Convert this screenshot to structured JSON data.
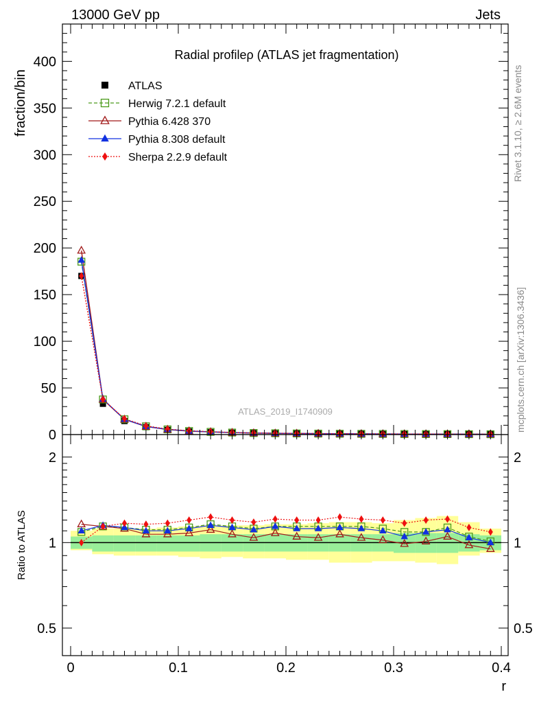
{
  "header": {
    "left": "13000 GeV pp",
    "right": "Jets"
  },
  "side_labels": {
    "rivet": "Rivet 3.1.10, ≥ 2.6M events",
    "mcplots": "mcplots.cern.ch [arXiv:1306.3436]"
  },
  "analysis_id": "ATLAS_2019_I1740909",
  "chart_data": {
    "type": "line",
    "title": "Radial profileρ (ATLAS jet fragmentation)",
    "xlabel": "r",
    "ylabel": "fraction/bin",
    "ratio_ylabel": "Ratio to ATLAS",
    "xlim": [
      -0.01,
      0.4
    ],
    "ylim": [
      0,
      440
    ],
    "ratio_ylim": [
      0.4,
      2.4
    ],
    "ratio_scale": "log",
    "x_ticks": [
      "0",
      "0.1",
      "0.2",
      "0.3",
      "0.4"
    ],
    "y_ticks": [
      "0",
      "50",
      "100",
      "150",
      "200",
      "250",
      "300",
      "350",
      "400"
    ],
    "ratio_ticks": [
      "0.5",
      "1",
      "2"
    ],
    "x": [
      0.01,
      0.03,
      0.05,
      0.07,
      0.09,
      0.11,
      0.13,
      0.15,
      0.17,
      0.19,
      0.21,
      0.23,
      0.25,
      0.27,
      0.29,
      0.31,
      0.33,
      0.35,
      0.37,
      0.39
    ],
    "legend_position": "top-left",
    "data": {
      "name": "ATLAS",
      "values": [
        170,
        33,
        14.5,
        8.0,
        5.0,
        3.4,
        2.5,
        1.9,
        1.5,
        1.25,
        1.05,
        0.9,
        0.78,
        0.68,
        0.6,
        0.53,
        0.47,
        0.42,
        0.38,
        0.34
      ],
      "band_green_lo": [
        0.95,
        0.93,
        0.93,
        0.93,
        0.93,
        0.93,
        0.93,
        0.93,
        0.93,
        0.93,
        0.93,
        0.93,
        0.93,
        0.93,
        0.93,
        0.92,
        0.92,
        0.92,
        0.93,
        0.94
      ],
      "band_green_hi": [
        1.05,
        1.06,
        1.06,
        1.06,
        1.06,
        1.06,
        1.07,
        1.07,
        1.07,
        1.07,
        1.07,
        1.07,
        1.07,
        1.07,
        1.07,
        1.08,
        1.08,
        1.08,
        1.07,
        1.06
      ],
      "band_yellow_lo": [
        0.94,
        0.91,
        0.9,
        0.9,
        0.9,
        0.89,
        0.88,
        0.89,
        0.88,
        0.88,
        0.87,
        0.87,
        0.85,
        0.85,
        0.86,
        0.86,
        0.85,
        0.84,
        0.9,
        0.92
      ],
      "band_yellow_hi": [
        1.1,
        1.12,
        1.12,
        1.12,
        1.13,
        1.14,
        1.15,
        1.15,
        1.15,
        1.16,
        1.16,
        1.17,
        1.18,
        1.18,
        1.17,
        1.2,
        1.22,
        1.24,
        1.18,
        1.12
      ]
    },
    "series": [
      {
        "name": "Herwig 7.2.1 default",
        "color": "#4a9a1a",
        "marker": "open-square",
        "line": "dashed",
        "ratio": [
          1.09,
          1.14,
          1.13,
          1.11,
          1.11,
          1.13,
          1.16,
          1.14,
          1.12,
          1.14,
          1.14,
          1.14,
          1.14,
          1.14,
          1.12,
          1.09,
          1.09,
          1.13,
          1.05,
          1.01
        ]
      },
      {
        "name": "Pythia 6.428 370",
        "color": "#a01818",
        "marker": "open-triangle",
        "line": "solid",
        "ratio": [
          1.16,
          1.14,
          1.12,
          1.07,
          1.07,
          1.08,
          1.11,
          1.07,
          1.04,
          1.08,
          1.05,
          1.04,
          1.07,
          1.04,
          1.02,
          0.99,
          1.01,
          1.05,
          0.98,
          0.95
        ]
      },
      {
        "name": "Pythia 8.308 default",
        "color": "#1030e0",
        "marker": "filled-triangle",
        "line": "solid",
        "ratio": [
          1.1,
          1.15,
          1.13,
          1.1,
          1.1,
          1.12,
          1.15,
          1.13,
          1.11,
          1.14,
          1.12,
          1.12,
          1.13,
          1.12,
          1.1,
          1.05,
          1.09,
          1.11,
          1.04,
          1.0
        ]
      },
      {
        "name": "Sherpa 2.2.9 default",
        "color": "#ee1010",
        "marker": "filled-diamond",
        "line": "dotted",
        "ratio": [
          1.0,
          1.14,
          1.17,
          1.16,
          1.17,
          1.2,
          1.23,
          1.2,
          1.18,
          1.21,
          1.2,
          1.2,
          1.23,
          1.21,
          1.2,
          1.17,
          1.2,
          1.21,
          1.13,
          1.09
        ]
      }
    ]
  }
}
